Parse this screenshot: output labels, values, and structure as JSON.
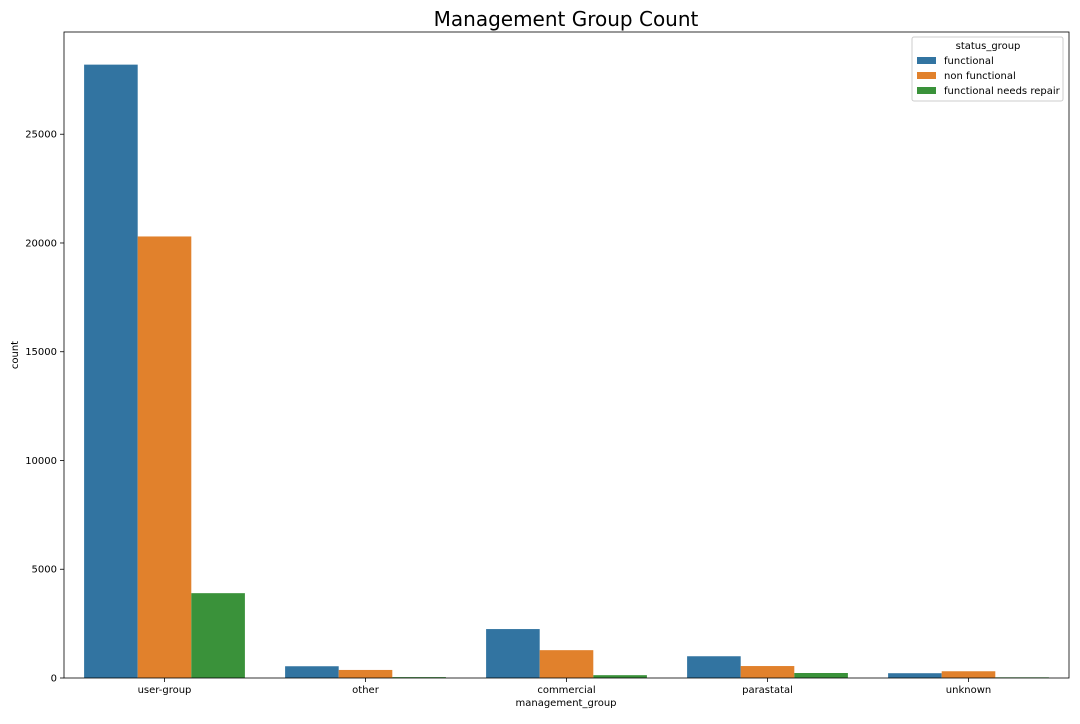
{
  "chart_data": {
    "type": "bar",
    "title": "Management Group Count",
    "xlabel": "management_group",
    "ylabel": "count",
    "ylim": [
      0,
      29700
    ],
    "yticks": [
      0,
      5000,
      10000,
      15000,
      20000,
      25000
    ],
    "grid": false,
    "legend": {
      "title": "status_group",
      "placement": "top-right"
    },
    "categories": [
      "user-group",
      "other",
      "commercial",
      "parastatal",
      "unknown"
    ],
    "series": [
      {
        "name": "functional",
        "color": "#3274a1",
        "values": [
          28200,
          540,
          2250,
          1000,
          220
        ]
      },
      {
        "name": "non functional",
        "color": "#e1812c",
        "values": [
          20300,
          370,
          1280,
          550,
          310
        ]
      },
      {
        "name": "functional needs repair",
        "color": "#3a923a",
        "values": [
          3900,
          40,
          130,
          230,
          30
        ]
      }
    ]
  }
}
